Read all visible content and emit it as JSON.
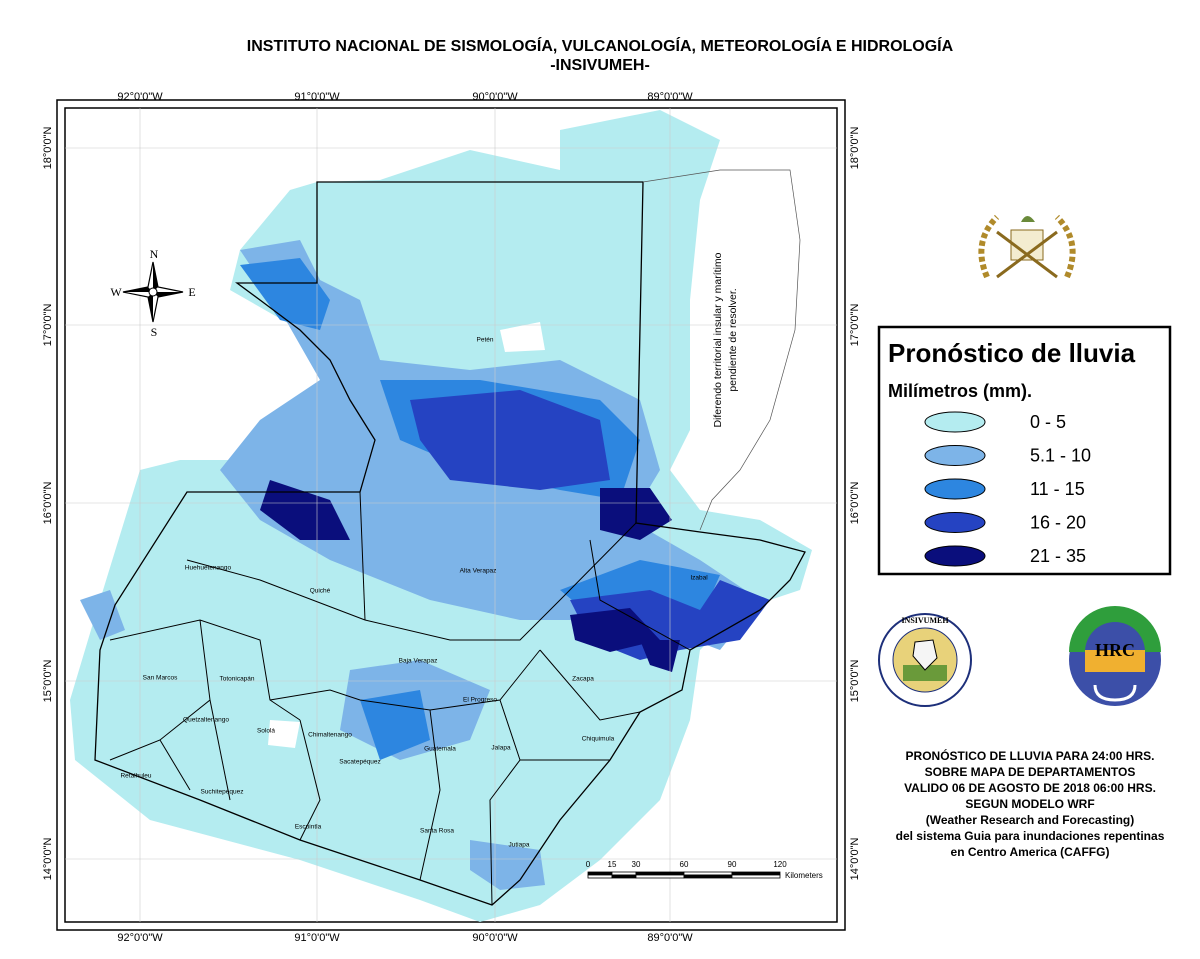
{
  "header": {
    "title": "INSTITUTO NACIONAL DE SISMOLOGÍA, VULCANOLOGÍA, METEOROLOGÍA E HIDROLOGÍA",
    "subtitle": "-INSIVUMEH-"
  },
  "map": {
    "longitude_labels": [
      "92°0'0\"W",
      "91°0'0\"W",
      "90°0'0\"W",
      "89°0'0\"W"
    ],
    "latitude_labels": [
      "18°0'0\"N",
      "17°0'0\"N",
      "16°0'0\"N",
      "15°0'0\"N",
      "14°0'0\"N"
    ],
    "compass": {
      "north": "N",
      "south": "S",
      "west": "W",
      "east": "E"
    },
    "disputed_note": [
      "Diferendo territorial insular y marítimo",
      "pendiente de resolver."
    ],
    "departments": [
      "Petén",
      "Huehuetenango",
      "Quiché",
      "Alta Verapaz",
      "Izabal",
      "San Marcos",
      "Totonicapán",
      "Quetzaltenango",
      "Sololá",
      "Chimaltenango",
      "Baja Verapaz",
      "El Progreso",
      "Zacapa",
      "Retalhuleu",
      "Suchitepéquez",
      "Sacatepéquez",
      "Guatemala",
      "Jalapa",
      "Chiquimula",
      "Escuintla",
      "Santa Rosa",
      "Jutiapa"
    ],
    "scale": {
      "ticks": [
        0,
        15,
        30,
        60,
        90,
        120
      ],
      "unit": "Kilometers"
    }
  },
  "legend": {
    "title": "Pronóstico de lluvia",
    "unit": "Milímetros (mm).",
    "classes": [
      {
        "label": "0 - 5",
        "color": "#b4ecf0"
      },
      {
        "label": "5.1 - 10",
        "color": "#7db4e8"
      },
      {
        "label": "11 - 15",
        "color": "#2d86e0"
      },
      {
        "label": "16 - 20",
        "color": "#2543c2"
      },
      {
        "label": "21 - 35",
        "color": "#0a0e7c"
      }
    ]
  },
  "logos": {
    "insivumeh": "INSIVUMEH",
    "hrc": "HRC"
  },
  "info": [
    "PRONÓSTICO DE LLUVIA PARA 24:00 HRS.",
    "SOBRE MAPA DE DEPARTAMENTOS",
    "VALIDO 06 DE AGOSTO DE 2018 06:00 HRS.",
    "SEGUN MODELO WRF",
    "(Weather Research and Forecasting)",
    "del sistema Guia  para inundaciones repentinas",
    "en Centro America (CAFFG)"
  ]
}
